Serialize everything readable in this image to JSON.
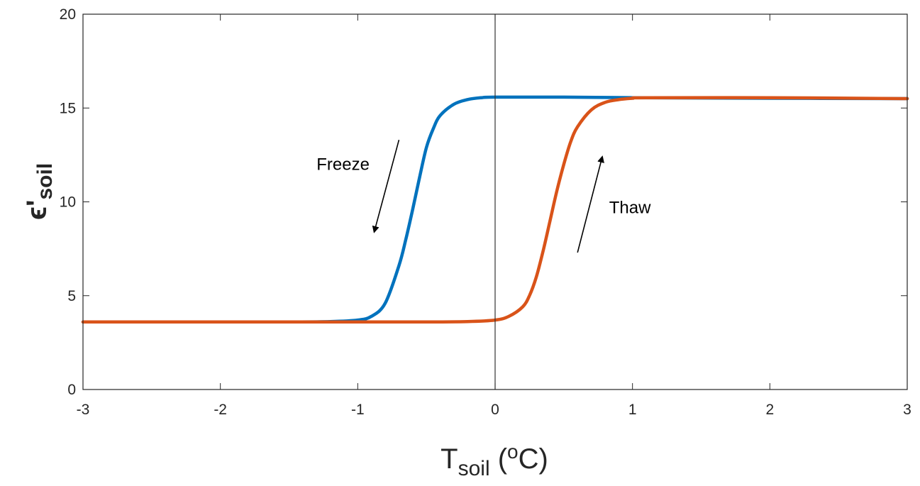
{
  "chart_data": {
    "type": "line",
    "xlabel": {
      "main": "T",
      "sub": "soil",
      "pre": " (",
      "sup": "o",
      "post": "C)"
    },
    "ylabel": {
      "main": "ϵ'",
      "sub": "soil"
    },
    "xlim": [
      -3,
      3
    ],
    "ylim": [
      0,
      20
    ],
    "xticks": [
      -3,
      -2,
      -1,
      0,
      1,
      2,
      3
    ],
    "yticks": [
      0,
      5,
      10,
      15,
      20
    ],
    "grid": false,
    "zero_line_x": 0,
    "series": [
      {
        "color": "#0072BD",
        "x": [
          -3,
          -2,
          -1.5,
          -1.2,
          -1.0,
          -0.9,
          -0.8,
          -0.7,
          -0.65,
          -0.6,
          -0.55,
          -0.5,
          -0.45,
          -0.4,
          -0.3,
          -0.2,
          -0.1,
          0,
          0.5,
          1.0,
          2.0,
          3.0
        ],
        "y": [
          3.6,
          3.6,
          3.6,
          3.62,
          3.7,
          3.9,
          4.6,
          6.6,
          8.0,
          9.6,
          11.3,
          12.9,
          13.9,
          14.6,
          15.2,
          15.45,
          15.55,
          15.58,
          15.58,
          15.55,
          15.52,
          15.5
        ]
      },
      {
        "color": "#D95319",
        "x": [
          -3,
          -2,
          -1,
          -0.5,
          -0.2,
          0,
          0.1,
          0.2,
          0.25,
          0.3,
          0.35,
          0.4,
          0.45,
          0.5,
          0.55,
          0.6,
          0.7,
          0.8,
          0.9,
          1.0,
          1.1,
          2.0,
          3.0
        ],
        "y": [
          3.6,
          3.6,
          3.6,
          3.6,
          3.62,
          3.7,
          3.9,
          4.4,
          5.0,
          6.0,
          7.4,
          9.0,
          10.6,
          12.0,
          13.2,
          14.0,
          14.9,
          15.3,
          15.45,
          15.52,
          15.55,
          15.55,
          15.5
        ]
      }
    ],
    "annotations": [
      {
        "text": "Freeze",
        "x": -1.3,
        "y": 11.7,
        "arrow_from": [
          -0.7,
          13.3
        ],
        "arrow_to": [
          -0.88,
          8.4
        ]
      },
      {
        "text": "Thaw",
        "x": 0.83,
        "y": 9.4,
        "arrow_from": [
          0.6,
          7.3
        ],
        "arrow_to": [
          0.78,
          12.4
        ]
      }
    ]
  }
}
